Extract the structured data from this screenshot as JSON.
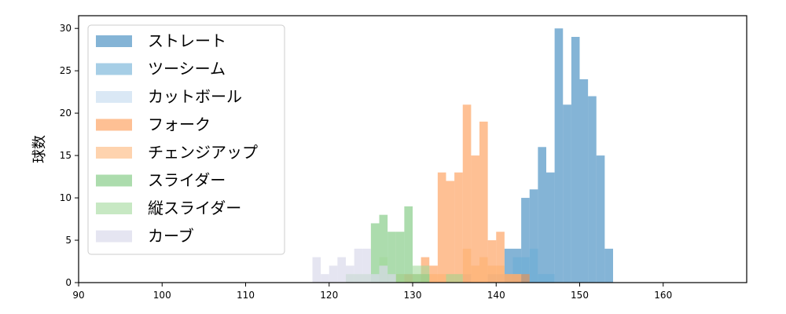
{
  "chart_data": {
    "type": "bar",
    "title": "",
    "xlabel": "",
    "ylabel": "球数",
    "xlim": [
      90,
      170
    ],
    "ylim": [
      0,
      31.5
    ],
    "xticks": [
      90,
      100,
      110,
      120,
      130,
      140,
      150,
      160
    ],
    "yticks": [
      0,
      5,
      10,
      15,
      20,
      25,
      30
    ],
    "bin_width": 1,
    "grid": false,
    "legend_position": "upper-left",
    "series": [
      {
        "name": "ストレート",
        "color": "#1f77b4",
        "opacity": 0.55,
        "bins": [
          [
            141,
            4
          ],
          [
            142,
            4
          ],
          [
            143,
            10
          ],
          [
            144,
            11
          ],
          [
            145,
            16
          ],
          [
            146,
            13
          ],
          [
            147,
            30
          ],
          [
            148,
            21
          ],
          [
            149,
            29
          ],
          [
            150,
            24
          ],
          [
            151,
            22
          ],
          [
            152,
            15
          ],
          [
            153,
            4
          ]
        ]
      },
      {
        "name": "ツーシーム",
        "color": "#6baed6",
        "opacity": 0.6,
        "bins": [
          [
            142,
            3
          ],
          [
            143,
            3
          ],
          [
            144,
            4
          ],
          [
            145,
            1
          ],
          [
            146,
            1
          ]
        ]
      },
      {
        "name": "カットボール",
        "color": "#c6dbef",
        "opacity": 0.65,
        "bins": [
          [
            136,
            1
          ],
          [
            139,
            1
          ],
          [
            140,
            1
          ],
          [
            141,
            1
          ],
          [
            142,
            1
          ]
        ]
      },
      {
        "name": "フォーク",
        "color": "#fd8d3c",
        "opacity": 0.55,
        "bins": [
          [
            131,
            3
          ],
          [
            132,
            2
          ],
          [
            133,
            13
          ],
          [
            134,
            12
          ],
          [
            135,
            13
          ],
          [
            136,
            21
          ],
          [
            137,
            15
          ],
          [
            138,
            19
          ],
          [
            139,
            5
          ],
          [
            140,
            6
          ],
          [
            141,
            1
          ],
          [
            142,
            1
          ],
          [
            143,
            1
          ]
        ]
      },
      {
        "name": "チェンジアップ",
        "color": "#fdae6b",
        "opacity": 0.55,
        "bins": [
          [
            128,
            1
          ],
          [
            129,
            1
          ],
          [
            130,
            1
          ],
          [
            131,
            1
          ],
          [
            132,
            1
          ],
          [
            133,
            1
          ],
          [
            134,
            1
          ],
          [
            135,
            1
          ],
          [
            136,
            4
          ],
          [
            137,
            2
          ],
          [
            138,
            3
          ],
          [
            139,
            2
          ],
          [
            140,
            2
          ],
          [
            141,
            1
          ],
          [
            142,
            1
          ]
        ]
      },
      {
        "name": "スライダー",
        "color": "#74c476",
        "opacity": 0.6,
        "bins": [
          [
            125,
            7
          ],
          [
            126,
            8
          ],
          [
            127,
            6
          ],
          [
            128,
            6
          ],
          [
            129,
            9
          ],
          [
            130,
            1
          ],
          [
            131,
            1
          ]
        ]
      },
      {
        "name": "縦スライダー",
        "color": "#a1d99b",
        "opacity": 0.6,
        "bins": [
          [
            122,
            1
          ],
          [
            123,
            1
          ],
          [
            124,
            1
          ],
          [
            126,
            3
          ],
          [
            127,
            1
          ],
          [
            128,
            1
          ],
          [
            130,
            2
          ],
          [
            131,
            2
          ],
          [
            134,
            1
          ],
          [
            135,
            1
          ]
        ]
      },
      {
        "name": "カーブ",
        "color": "#dadaeb",
        "opacity": 0.7,
        "bins": [
          [
            118,
            3
          ],
          [
            119,
            1
          ],
          [
            120,
            2
          ],
          [
            121,
            3
          ],
          [
            122,
            2
          ],
          [
            123,
            4
          ],
          [
            124,
            4
          ],
          [
            125,
            1
          ],
          [
            126,
            2
          ],
          [
            127,
            1
          ]
        ]
      }
    ]
  }
}
